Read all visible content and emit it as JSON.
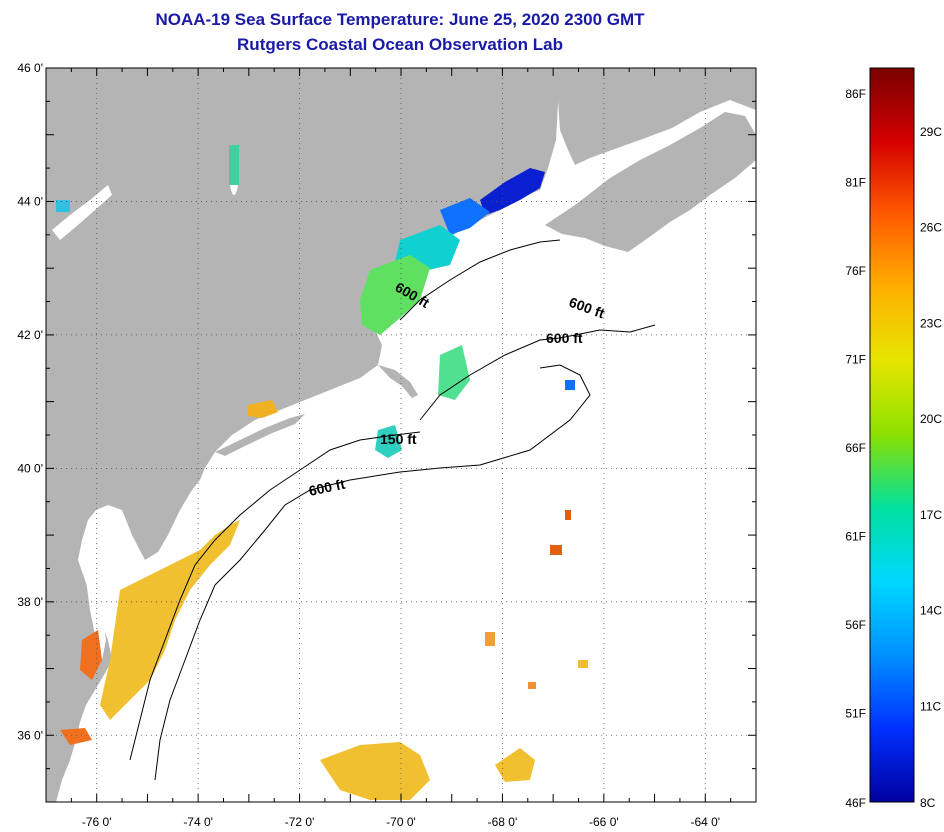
{
  "header": {
    "title": "NOAA-19 Sea Surface Temperature:  June 25, 2020 2300 GMT",
    "subtitle": "Rutgers Coastal Ocean Observation Lab"
  },
  "map": {
    "lon_range": [
      -77,
      -63
    ],
    "lat_range": [
      35,
      46
    ],
    "lon_ticks": [
      {
        "lon": -76,
        "label": "-76 0'"
      },
      {
        "lon": -74,
        "label": "-74 0'"
      },
      {
        "lon": -72,
        "label": "-72 0'"
      },
      {
        "lon": -70,
        "label": "-70 0'"
      },
      {
        "lon": -68,
        "label": "-68 0'"
      },
      {
        "lon": -66,
        "label": "-66 0'"
      },
      {
        "lon": -64,
        "label": "-64 0'"
      }
    ],
    "lat_ticks": [
      {
        "lat": 46,
        "label": "46 0'"
      },
      {
        "lat": 44,
        "label": "44 0'"
      },
      {
        "lat": 42,
        "label": "42 0'"
      },
      {
        "lat": 40,
        "label": "40 0'"
      },
      {
        "lat": 38,
        "label": "38 0'"
      },
      {
        "lat": 36,
        "label": "36 0'"
      }
    ],
    "contour_labels": [
      "600 ft",
      "600 ft",
      "600 ft",
      "150 ft",
      "600 ft"
    ],
    "land_color": "#b4b4b4",
    "grid": true
  },
  "colorbar": {
    "colors": [
      "#7a0000",
      "#d40000",
      "#ff5a00",
      "#ffb000",
      "#e6e600",
      "#8be000",
      "#00e0a0",
      "#00d8ff",
      "#0090ff",
      "#0030ff",
      "#0000a0"
    ],
    "fahrenheit_labels": [
      "86F",
      "81F",
      "76F",
      "71F",
      "66F",
      "61F",
      "56F",
      "51F",
      "46F"
    ],
    "celsius_labels": [
      "29C",
      "26C",
      "23C",
      "20C",
      "17C",
      "14C",
      "11C",
      "8C"
    ]
  }
}
